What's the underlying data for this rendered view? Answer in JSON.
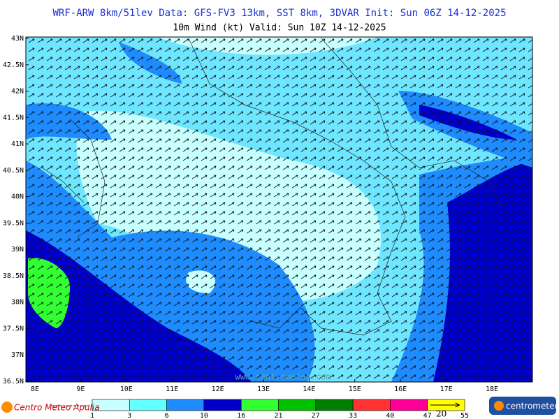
{
  "header": {
    "line1": "WRF-ARW 8km/51lev  Data: GFS-FV3 13km, SST 8km, 3DVAR  Init: Sun 06Z 14-12-2025",
    "line2": "10m Wind (kt)  Valid: Sun 10Z 14-12-2025"
  },
  "map": {
    "lat_labels": [
      "43N",
      "42.5N",
      "42N",
      "41.5N",
      "41N",
      "40.5N",
      "40N",
      "39.5N",
      "39N",
      "38.5N",
      "38N",
      "37.5N",
      "37N",
      "36.5N"
    ],
    "lon_labels": [
      "8E",
      "9E",
      "10E",
      "11E",
      "12E",
      "13E",
      "14E",
      "15E",
      "16E",
      "17E",
      "18E"
    ],
    "watermark": "www.centrometeo.com"
  },
  "legend": {
    "labels": [
      "1",
      "3",
      "6",
      "10",
      "16",
      "21",
      "27",
      "33",
      "40",
      "47",
      "55"
    ],
    "colors": [
      "#c8ffff",
      "#64ffff",
      "#1e8cff",
      "#0000c8",
      "#32ff32",
      "#00c000",
      "#008000",
      "#ff3232",
      "#ff0096",
      "#ffff00"
    ],
    "arrow_label": "20"
  },
  "footer": {
    "left_logo": "Centro Meteo Apulia",
    "right_logo": "centrometeo"
  }
}
